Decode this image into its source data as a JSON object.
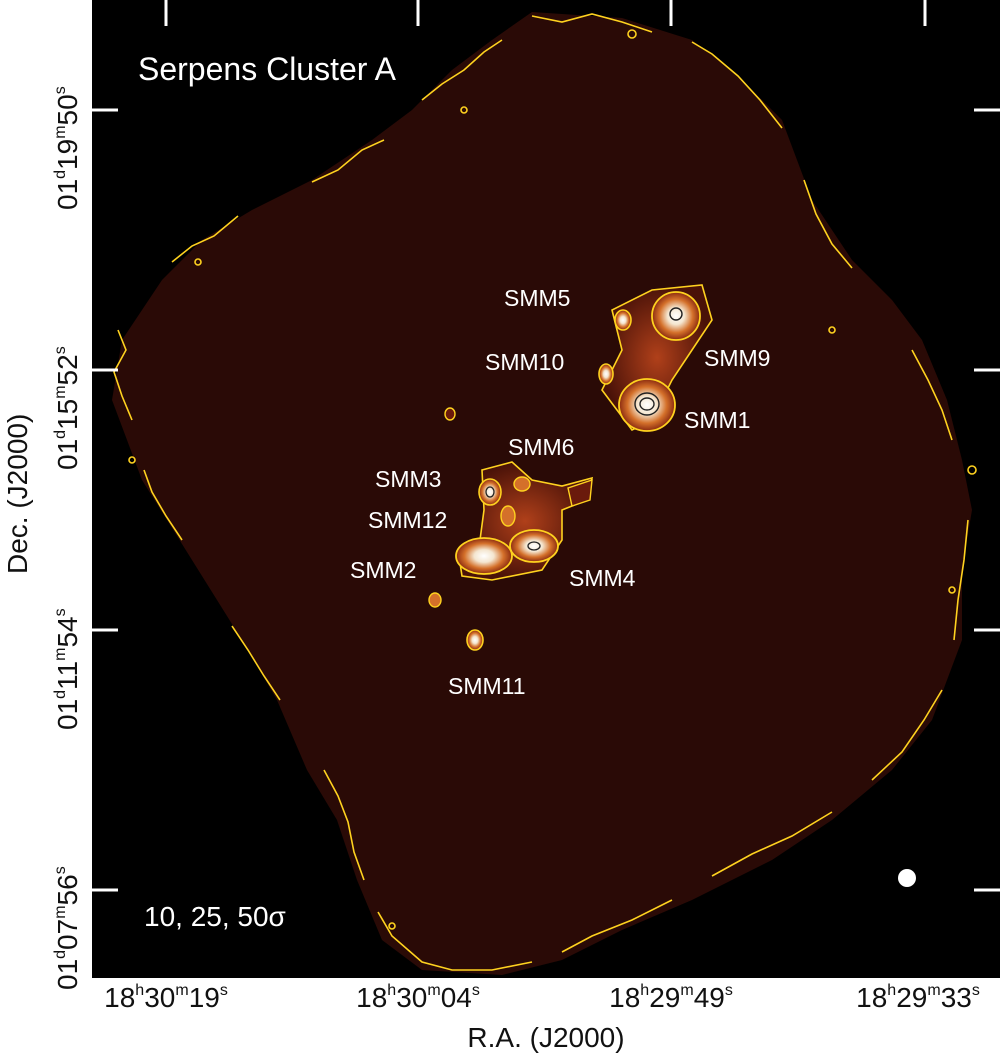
{
  "figure": {
    "title": "Serpens Cluster A",
    "contour_levels": "10, 25, 50σ",
    "x_axis_label": "R.A. (J2000)",
    "y_axis_label": "Dec. (J2000)",
    "x_ticks": [
      {
        "h": "18",
        "hs": "h",
        "m": "30",
        "ms": "m",
        "s": "19",
        "ss": "s"
      },
      {
        "h": "18",
        "hs": "h",
        "m": "30",
        "ms": "m",
        "s": "04",
        "ss": "s"
      },
      {
        "h": "18",
        "hs": "h",
        "m": "29",
        "ms": "m",
        "s": "49",
        "ss": "s"
      },
      {
        "h": "18",
        "hs": "h",
        "m": "29",
        "ms": "m",
        "s": "33",
        "ss": "s"
      }
    ],
    "y_ticks": [
      {
        "d": "01",
        "ds": "d",
        "m": "19",
        "ms": "m",
        "s": "50",
        "ss": "s"
      },
      {
        "d": "01",
        "ds": "d",
        "m": "15",
        "ms": "m",
        "s": "52",
        "ss": "s"
      },
      {
        "d": "01",
        "ds": "d",
        "m": "11",
        "ms": "m",
        "s": "54",
        "ss": "s"
      },
      {
        "d": "01",
        "ds": "d",
        "m": "07",
        "ms": "m",
        "s": "56",
        "ss": "s"
      }
    ],
    "sources": [
      {
        "label": "SMM5"
      },
      {
        "label": "SMM9"
      },
      {
        "label": "SMM10"
      },
      {
        "label": "SMM1"
      },
      {
        "label": "SMM6"
      },
      {
        "label": "SMM3"
      },
      {
        "label": "SMM12"
      },
      {
        "label": "SMM2"
      },
      {
        "label": "SMM4"
      },
      {
        "label": "SMM11"
      }
    ],
    "colors": {
      "background": "#000000",
      "map_base": "#2a0a06",
      "contour": "#ffd21f",
      "core_dark": "#8a2a10",
      "core_mid": "#d4702a",
      "core_bright": "#ffffff",
      "text_in_plot": "#ffffff"
    }
  }
}
